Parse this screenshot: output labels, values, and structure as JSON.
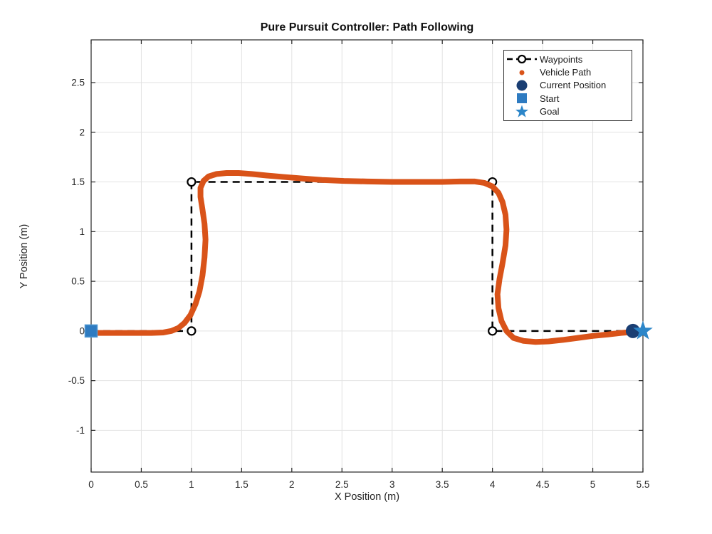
{
  "title": "Pure Pursuit Controller: Path Following",
  "chart_data": {
    "type": "line",
    "title": "Pure Pursuit Controller: Path Following",
    "xlabel": "X Position (m)",
    "ylabel": "Y Position (m)",
    "xlim": [
      0,
      5.5
    ],
    "ylim": [
      -1.42,
      2.93
    ],
    "xticks": [
      0,
      0.5,
      1,
      1.5,
      2,
      2.5,
      3,
      3.5,
      4,
      4.5,
      5,
      5.5
    ],
    "xtick_labels": [
      "0",
      "0.5",
      "1",
      "1.5",
      "2",
      "2.5",
      "3",
      "3.5",
      "4",
      "4.5",
      "5",
      "5.5"
    ],
    "yticks": [
      -1,
      -0.5,
      0,
      0.5,
      1,
      1.5,
      2,
      2.5
    ],
    "ytick_labels": [
      "-1",
      "-0.5",
      "0",
      "0.5",
      "1",
      "1.5",
      "2",
      "2.5"
    ],
    "grid": true,
    "style": {
      "grid_color": "#e2e2e2",
      "axis_color": "#262626",
      "background": "#ffffff"
    },
    "legend": {
      "position": "top-right",
      "entries": [
        {
          "label": "Waypoints",
          "marker": "dashed-line-circle",
          "color": "#000000"
        },
        {
          "label": "Vehicle Path",
          "marker": "dot",
          "color": "#d95319"
        },
        {
          "label": "Current Position",
          "marker": "filled-circle",
          "color": "#1a3e73"
        },
        {
          "label": "Start",
          "marker": "filled-square",
          "color": "#2e7bc1"
        },
        {
          "label": "Goal",
          "marker": "filled-star",
          "color": "#2c86c9"
        }
      ]
    },
    "series": [
      {
        "name": "Waypoints",
        "style": "dashed-line-open-circles",
        "color": "#000000",
        "points": [
          [
            0,
            0
          ],
          [
            1,
            0
          ],
          [
            1,
            1.5
          ],
          [
            4,
            1.5
          ],
          [
            4,
            0
          ],
          [
            5.5,
            0
          ]
        ]
      },
      {
        "name": "Vehicle Path",
        "style": "thick-dotted-line",
        "color": "#d95319",
        "points": [
          [
            0,
            -0.02
          ],
          [
            0.15,
            -0.02
          ],
          [
            0.3,
            -0.02
          ],
          [
            0.45,
            -0.02
          ],
          [
            0.6,
            -0.02
          ],
          [
            0.72,
            -0.015
          ],
          [
            0.8,
            0
          ],
          [
            0.87,
            0.03
          ],
          [
            0.93,
            0.08
          ],
          [
            0.99,
            0.16
          ],
          [
            1.04,
            0.27
          ],
          [
            1.08,
            0.4
          ],
          [
            1.11,
            0.56
          ],
          [
            1.13,
            0.74
          ],
          [
            1.14,
            0.92
          ],
          [
            1.13,
            1.08
          ],
          [
            1.11,
            1.22
          ],
          [
            1.09,
            1.35
          ],
          [
            1.09,
            1.44
          ],
          [
            1.12,
            1.51
          ],
          [
            1.17,
            1.555
          ],
          [
            1.25,
            1.58
          ],
          [
            1.35,
            1.59
          ],
          [
            1.47,
            1.59
          ],
          [
            1.6,
            1.58
          ],
          [
            1.75,
            1.565
          ],
          [
            1.92,
            1.55
          ],
          [
            2.1,
            1.535
          ],
          [
            2.3,
            1.52
          ],
          [
            2.52,
            1.51
          ],
          [
            2.75,
            1.505
          ],
          [
            3,
            1.5
          ],
          [
            3.25,
            1.5
          ],
          [
            3.5,
            1.5
          ],
          [
            3.68,
            1.505
          ],
          [
            3.82,
            1.505
          ],
          [
            3.92,
            1.49
          ],
          [
            4,
            1.455
          ],
          [
            4.06,
            1.39
          ],
          [
            4.1,
            1.3
          ],
          [
            4.13,
            1.17
          ],
          [
            4.14,
            1.02
          ],
          [
            4.13,
            0.86
          ],
          [
            4.1,
            0.68
          ],
          [
            4.07,
            0.52
          ],
          [
            4.05,
            0.37
          ],
          [
            4.06,
            0.23
          ],
          [
            4.09,
            0.1
          ],
          [
            4.14,
            0
          ],
          [
            4.21,
            -0.07
          ],
          [
            4.31,
            -0.1
          ],
          [
            4.43,
            -0.11
          ],
          [
            4.56,
            -0.105
          ],
          [
            4.7,
            -0.09
          ],
          [
            4.85,
            -0.07
          ],
          [
            5,
            -0.05
          ],
          [
            5.15,
            -0.035
          ],
          [
            5.28,
            -0.02
          ],
          [
            5.4,
            -0.01
          ]
        ]
      },
      {
        "name": "Current Position",
        "style": "marker-filled-circle",
        "color": "#1a3e73",
        "points": [
          [
            5.4,
            0
          ]
        ]
      },
      {
        "name": "Start",
        "style": "marker-filled-square",
        "color": "#2e7bc1",
        "edge_color": "#4c96d2",
        "points": [
          [
            0,
            0
          ]
        ]
      },
      {
        "name": "Goal",
        "style": "marker-filled-star",
        "color": "#2c86c9",
        "points": [
          [
            5.5,
            0
          ]
        ]
      }
    ]
  }
}
